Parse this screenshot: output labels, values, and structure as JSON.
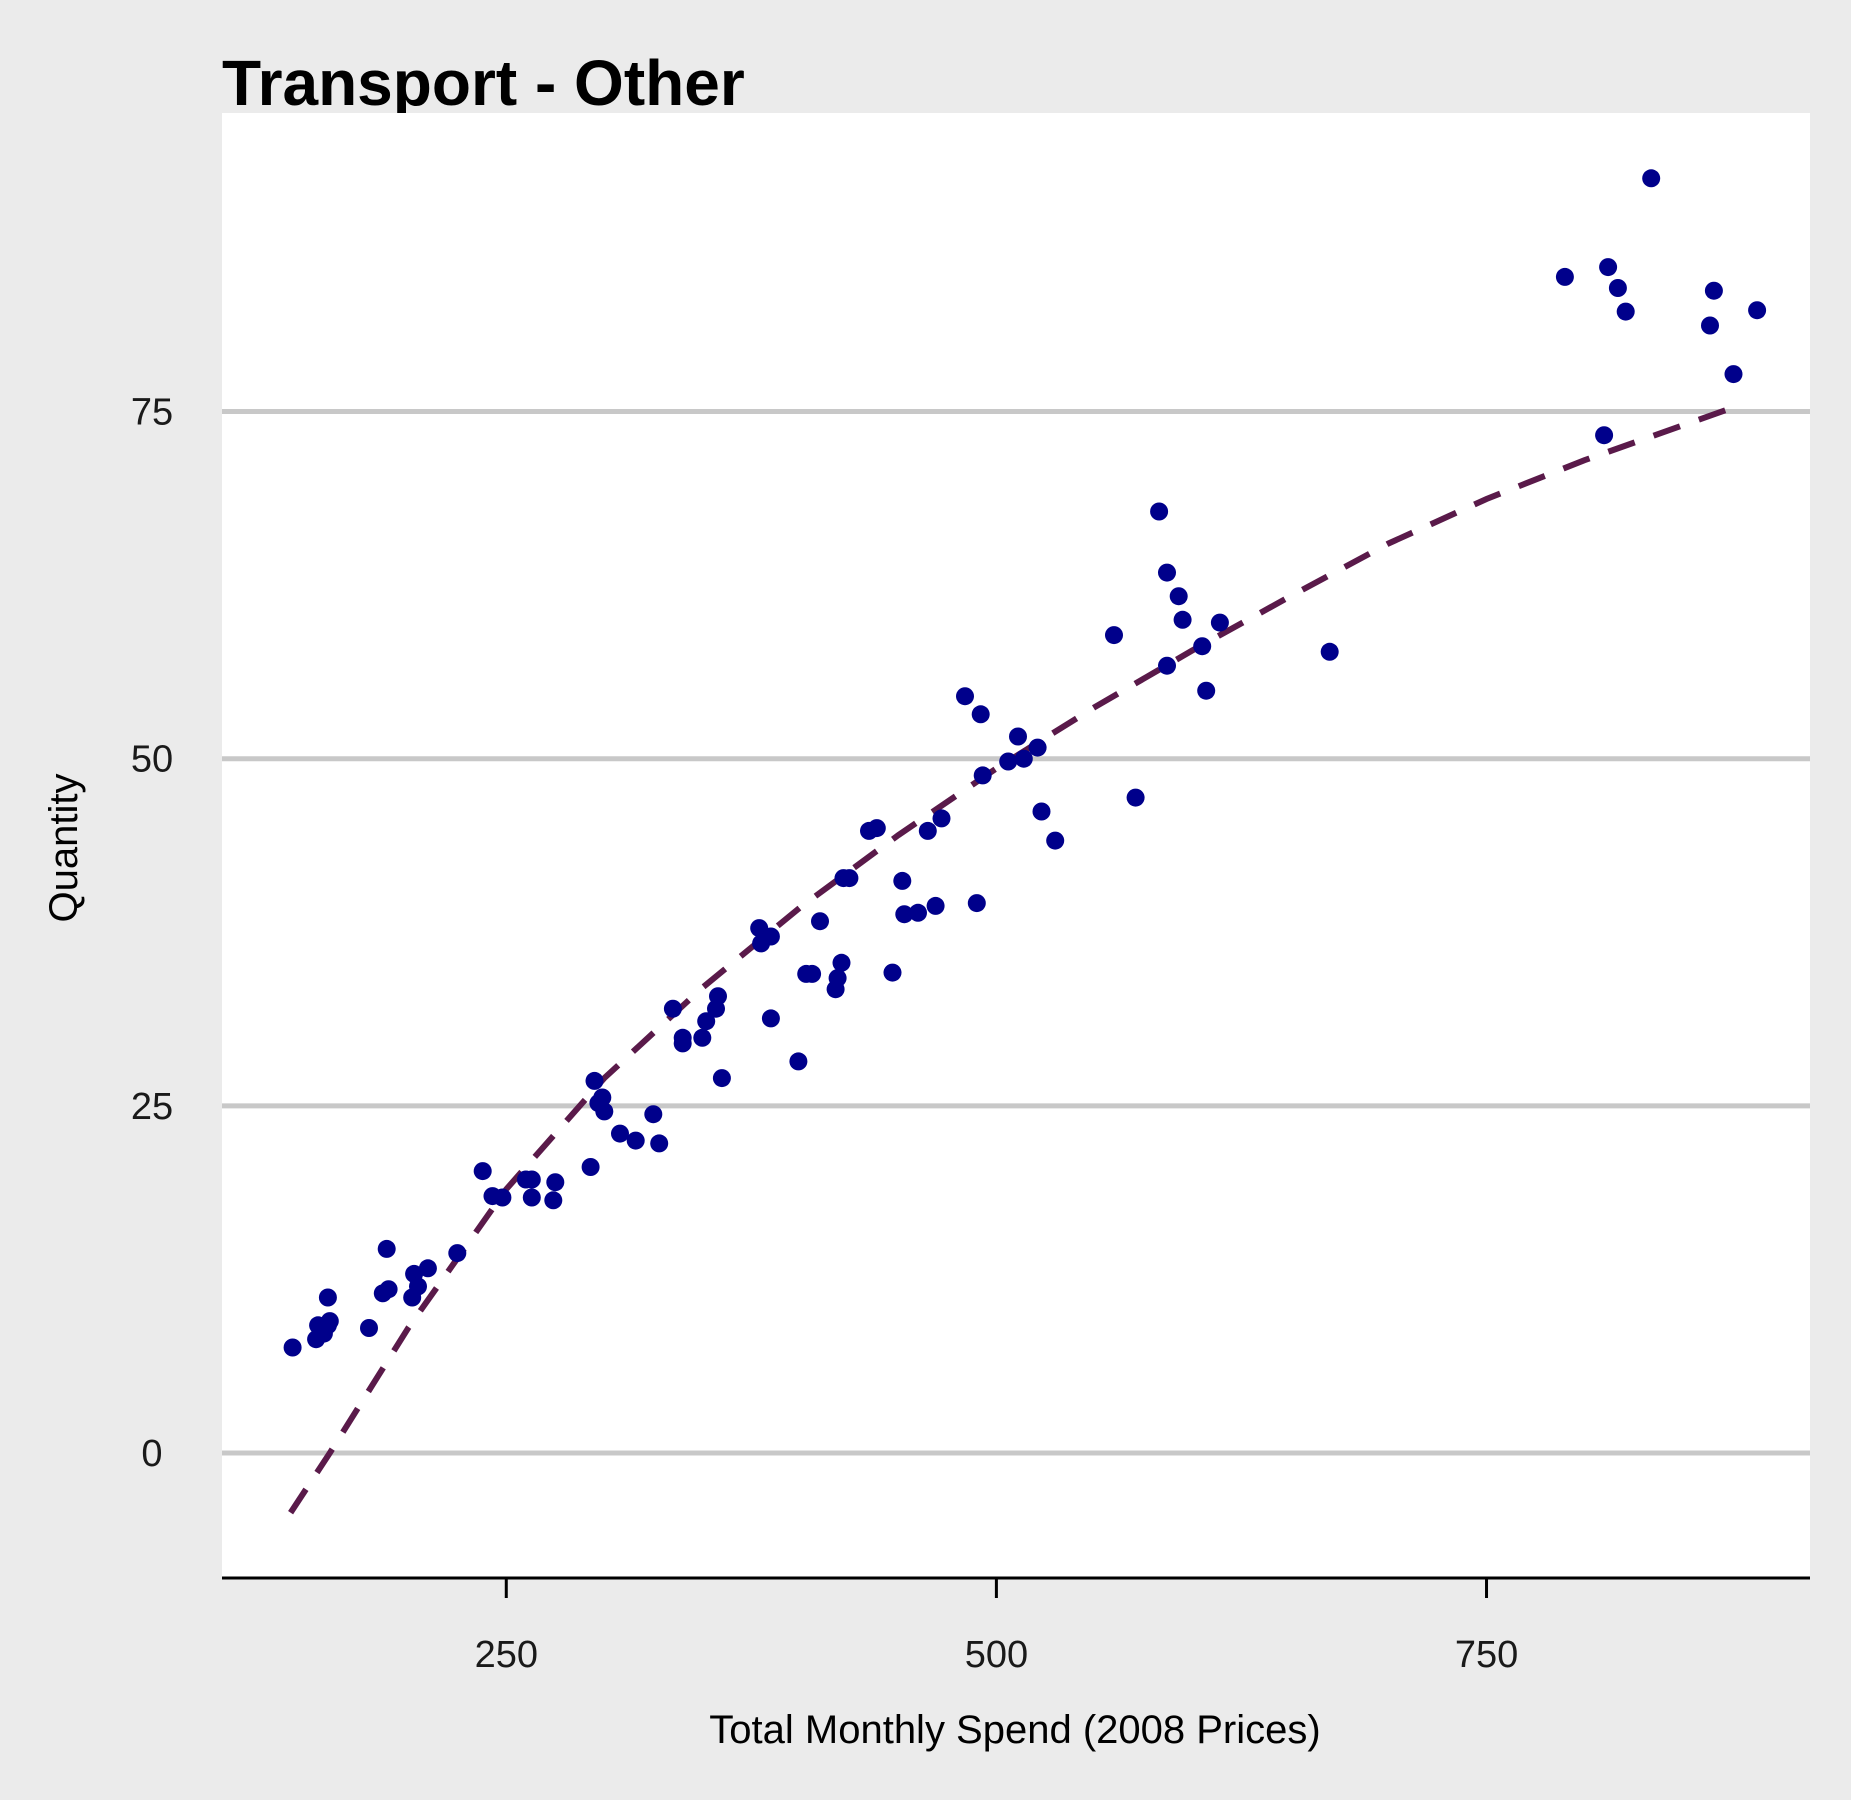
{
  "chart_data": {
    "type": "scatter",
    "title": "Transport - Other",
    "xlabel": "Total Monthly Spend (2008 Prices)",
    "ylabel": "Quantity",
    "xlim": [
      105,
      915
    ],
    "ylim": [
      -9,
      96.5
    ],
    "x_ticks": [
      250,
      500,
      750
    ],
    "y_ticks": [
      0,
      25,
      50,
      75
    ],
    "grid": "horizontal",
    "colors": {
      "points": "#00008b",
      "trend": "#5a1a4a",
      "grid": "#c8c8c8",
      "panel": "#ffffff",
      "background": "#ebebeb"
    },
    "points": [
      [
        141,
        7.6
      ],
      [
        153,
        8.2
      ],
      [
        154,
        9.2
      ],
      [
        157,
        8.6
      ],
      [
        159,
        9.2
      ],
      [
        160,
        9.5
      ],
      [
        159,
        11.2
      ],
      [
        180,
        9
      ],
      [
        187,
        11.5
      ],
      [
        190,
        11.8
      ],
      [
        189,
        14.7
      ],
      [
        202,
        11.2
      ],
      [
        203,
        12.9
      ],
      [
        205,
        12
      ],
      [
        210,
        13.3
      ],
      [
        225,
        14.4
      ],
      [
        238,
        20.3
      ],
      [
        243,
        18.5
      ],
      [
        248,
        18.4
      ],
      [
        260,
        19.7
      ],
      [
        263,
        19.7
      ],
      [
        263,
        18.4
      ],
      [
        275,
        19.5
      ],
      [
        274,
        18.2
      ],
      [
        293,
        20.6
      ],
      [
        295,
        26.8
      ],
      [
        297,
        25.2
      ],
      [
        299,
        25.6
      ],
      [
        300,
        24.6
      ],
      [
        308,
        23
      ],
      [
        316,
        22.5
      ],
      [
        325,
        24.4
      ],
      [
        328,
        22.3
      ],
      [
        335,
        32
      ],
      [
        340,
        29.9
      ],
      [
        340,
        29.5
      ],
      [
        350,
        29.9
      ],
      [
        352,
        31.1
      ],
      [
        357,
        32
      ],
      [
        358,
        32.9
      ],
      [
        360,
        27
      ],
      [
        379,
        37.8
      ],
      [
        380,
        36.7
      ],
      [
        385,
        37.2
      ],
      [
        385,
        31.3
      ],
      [
        399,
        28.2
      ],
      [
        403,
        34.5
      ],
      [
        406,
        34.5
      ],
      [
        410,
        38.3
      ],
      [
        418,
        33.4
      ],
      [
        419,
        34.2
      ],
      [
        421,
        35.3
      ],
      [
        422,
        41.4
      ],
      [
        425,
        41.4
      ],
      [
        435,
        44.8
      ],
      [
        439,
        45
      ],
      [
        447,
        34.6
      ],
      [
        452,
        41.2
      ],
      [
        453,
        38.8
      ],
      [
        460,
        38.9
      ],
      [
        465,
        44.8
      ],
      [
        469,
        39.4
      ],
      [
        472,
        45.7
      ],
      [
        484,
        54.5
      ],
      [
        490,
        39.6
      ],
      [
        492,
        53.2
      ],
      [
        493,
        48.8
      ],
      [
        506,
        49.8
      ],
      [
        511,
        51.6
      ],
      [
        514,
        50
      ],
      [
        521,
        50.8
      ],
      [
        523,
        46.2
      ],
      [
        530,
        44.1
      ],
      [
        560,
        58.9
      ],
      [
        571,
        47.2
      ],
      [
        583,
        67.8
      ],
      [
        587,
        63.4
      ],
      [
        587,
        56.7
      ],
      [
        593,
        61.7
      ],
      [
        595,
        60
      ],
      [
        605,
        58.1
      ],
      [
        607,
        54.9
      ],
      [
        614,
        59.8
      ],
      [
        670,
        57.7
      ],
      [
        790,
        84.7
      ],
      [
        810,
        73.3
      ],
      [
        812,
        85.4
      ],
      [
        817,
        83.9
      ],
      [
        821,
        82.2
      ],
      [
        834,
        91.8
      ],
      [
        864,
        81.2
      ],
      [
        866,
        83.7
      ],
      [
        876,
        77.7
      ],
      [
        888,
        82.3
      ]
    ],
    "trend": {
      "style": "dashed",
      "points": [
        [
          140,
          -4.3
        ],
        [
          160,
          0
        ],
        [
          200,
          9
        ],
        [
          250,
          19
        ],
        [
          300,
          27
        ],
        [
          350,
          33.5
        ],
        [
          400,
          39.3
        ],
        [
          450,
          44.5
        ],
        [
          500,
          49.3
        ],
        [
          550,
          53.7
        ],
        [
          600,
          57.8
        ],
        [
          650,
          61.7
        ],
        [
          700,
          65.5
        ],
        [
          750,
          68.7
        ],
        [
          800,
          71.5
        ],
        [
          850,
          74
        ],
        [
          880,
          75.5
        ]
      ]
    }
  }
}
